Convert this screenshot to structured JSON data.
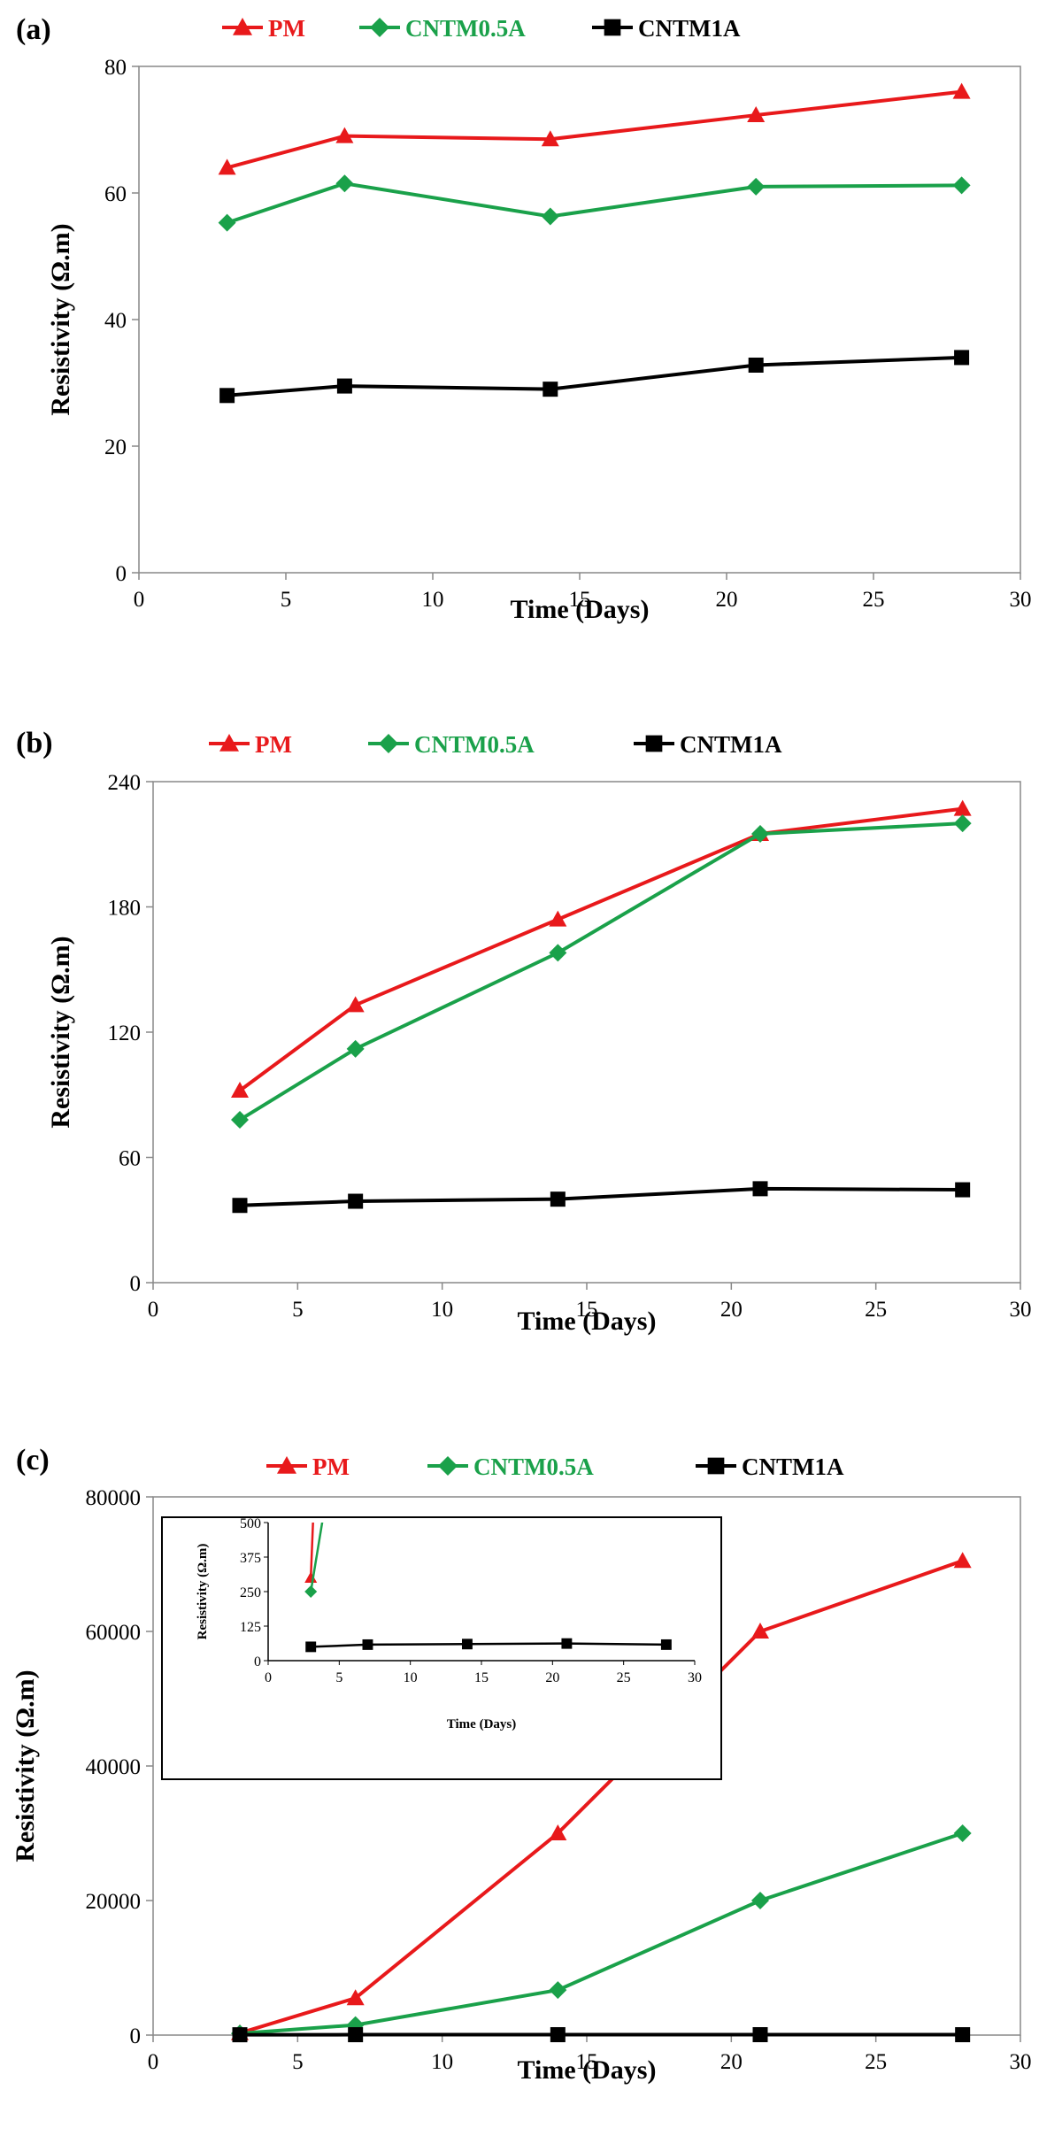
{
  "chart_data": [
    {
      "type": "line",
      "panel_label": "(a)",
      "xlabel": "Time (Days)",
      "ylabel": "Resistivity (Ω.m)",
      "xlim": [
        0,
        30
      ],
      "ylim": [
        0,
        80
      ],
      "xticks": [
        0,
        5,
        10,
        15,
        20,
        25,
        30
      ],
      "yticks": [
        0,
        20,
        40,
        60,
        80
      ],
      "x": [
        3,
        7,
        14,
        21,
        28
      ],
      "series": [
        {
          "name": "PM",
          "color": "#e8191b",
          "marker": "triangle",
          "values": [
            64,
            69,
            68.5,
            72.3,
            76
          ]
        },
        {
          "name": "CNTM0.5A",
          "color": "#1aa14a",
          "marker": "diamond",
          "values": [
            55.3,
            61.5,
            56.3,
            61,
            61.2
          ]
        },
        {
          "name": "CNTM1A",
          "color": "#000000",
          "marker": "square",
          "values": [
            28,
            29.5,
            29,
            32.8,
            34
          ]
        }
      ]
    },
    {
      "type": "line",
      "panel_label": "(b)",
      "xlabel": "Time (Days)",
      "ylabel": "Resistivity (Ω.m)",
      "xlim": [
        0,
        30
      ],
      "ylim": [
        0,
        240
      ],
      "xticks": [
        0,
        5,
        10,
        15,
        20,
        25,
        30
      ],
      "yticks": [
        0,
        60,
        120,
        180,
        240
      ],
      "x": [
        3,
        7,
        14,
        21,
        28
      ],
      "series": [
        {
          "name": "PM",
          "color": "#e8191b",
          "marker": "triangle",
          "values": [
            92,
            133,
            174,
            215,
            227
          ]
        },
        {
          "name": "CNTM0.5A",
          "color": "#1aa14a",
          "marker": "diamond",
          "values": [
            78,
            112,
            158,
            215,
            220
          ]
        },
        {
          "name": "CNTM1A",
          "color": "#000000",
          "marker": "square",
          "values": [
            37,
            39,
            40,
            45,
            44.5
          ]
        }
      ]
    },
    {
      "type": "line",
      "panel_label": "(c)",
      "xlabel": "Time (Days)",
      "ylabel": "Resistivity (Ω.m)",
      "xlim": [
        0,
        30
      ],
      "ylim": [
        0,
        80000
      ],
      "xticks": [
        0,
        5,
        10,
        15,
        20,
        25,
        30
      ],
      "yticks": [
        0,
        20000,
        40000,
        60000,
        80000
      ],
      "x": [
        3,
        7,
        14,
        21,
        28
      ],
      "series": [
        {
          "name": "PM",
          "color": "#e8191b",
          "marker": "triangle",
          "values": [
            300,
            5500,
            30000,
            60000,
            70500
          ]
        },
        {
          "name": "CNTM0.5A",
          "color": "#1aa14a",
          "marker": "diamond",
          "values": [
            250,
            1500,
            6700,
            20000,
            30000
          ]
        },
        {
          "name": "CNTM1A",
          "color": "#000000",
          "marker": "square",
          "values": [
            50,
            58,
            60,
            62,
            58
          ]
        }
      ],
      "inset": {
        "xlabel": "Time (Days)",
        "ylabel": "Resistivity (Ω.m)",
        "xlim": [
          0,
          30
        ],
        "ylim": [
          0,
          500
        ],
        "xticks": [
          0,
          5,
          10,
          15,
          20,
          25,
          30
        ],
        "yticks": [
          0,
          125,
          250,
          375,
          500
        ]
      }
    }
  ]
}
